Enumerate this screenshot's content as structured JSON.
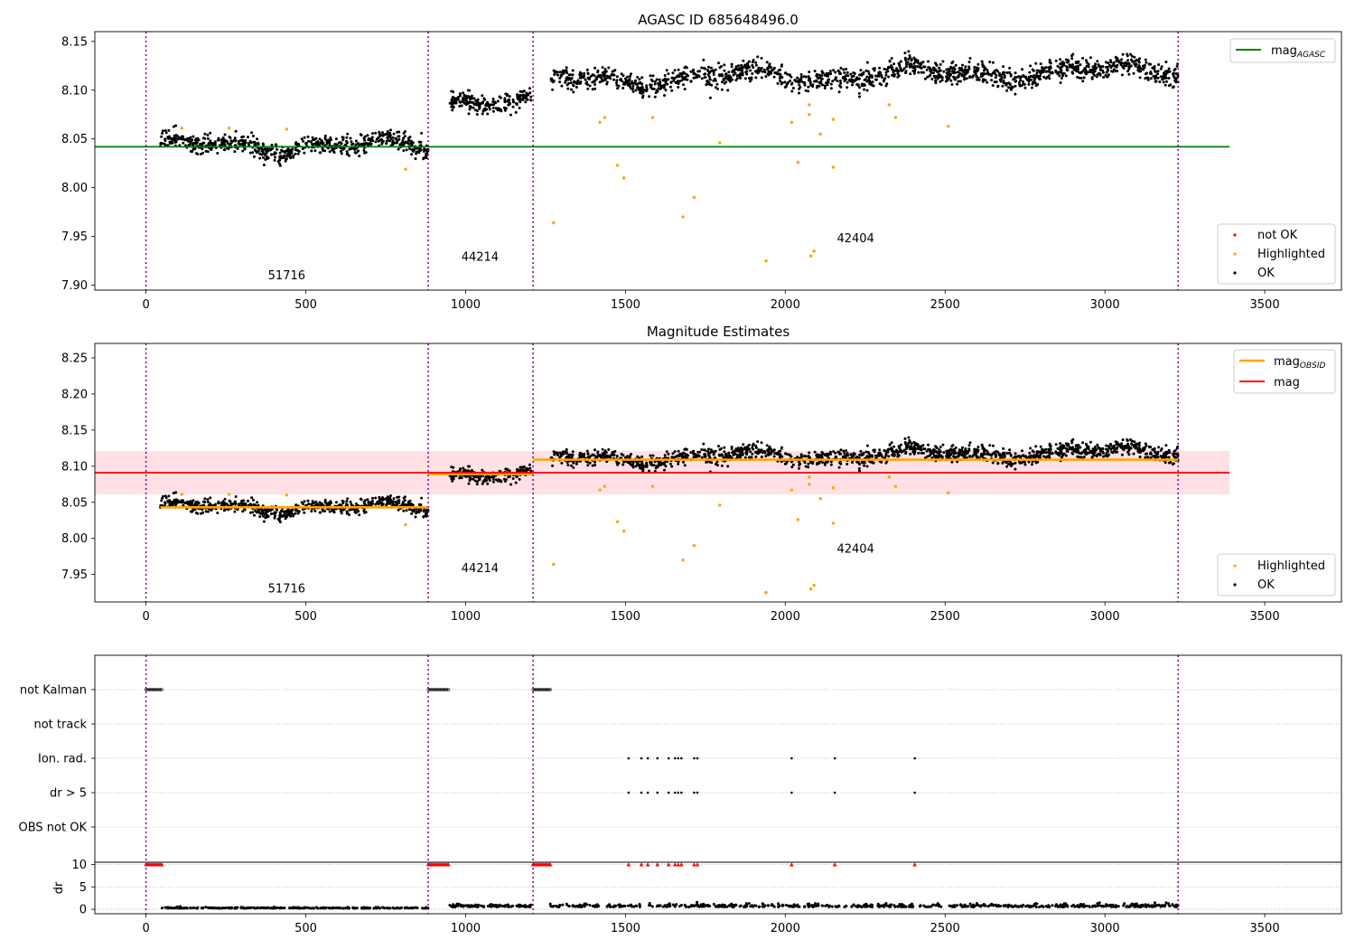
{
  "figure": {
    "background": "#ffffff"
  },
  "chart_data": [
    {
      "type": "scatter",
      "title": "AGASC ID 685648496.0",
      "xlim": [
        -160,
        3740
      ],
      "ylim": [
        7.895,
        8.16
      ],
      "xticks": [
        0,
        500,
        1000,
        1500,
        2000,
        2500,
        3000,
        3500
      ],
      "yticks": [
        7.9,
        7.95,
        8.0,
        8.05,
        8.1,
        8.15
      ],
      "ytick_labels": [
        "7.90",
        "7.95",
        "8.00",
        "8.05",
        "8.10",
        "8.15"
      ],
      "obsid_boundaries": [
        0,
        883,
        1211,
        3229
      ],
      "obsid_labels": [
        {
          "text": "51716",
          "x": 440,
          "y": 7.906
        },
        {
          "text": "44214",
          "x": 1045,
          "y": 7.925
        },
        {
          "text": "42404",
          "x": 2220,
          "y": 7.944
        }
      ],
      "reference_lines": [
        {
          "name": "mag_AGASC",
          "y": 8.042,
          "x": [
            -160,
            3390
          ],
          "color": "#008000",
          "width": 1.8
        }
      ],
      "ok_segments": [
        {
          "x": [
            45,
            883
          ],
          "mean": 8.043,
          "noise": 0.0045,
          "count": 640,
          "dy": [
            0,
            0
          ]
        },
        {
          "x": [
            950,
            1205
          ],
          "mean": 8.09,
          "noise": 0.0045,
          "count": 200,
          "dy": [
            0,
            0
          ]
        },
        {
          "x": [
            1265,
            3229
          ],
          "mean": 8.11,
          "noise": 0.0055,
          "count": 1500,
          "dy": [
            0,
            0.018
          ]
        }
      ],
      "highlighted_points": [
        [
          112,
          8.061
        ],
        [
          260,
          8.061
        ],
        [
          440,
          8.06
        ],
        [
          812,
          8.019
        ],
        [
          1420,
          8.067
        ],
        [
          1435,
          8.072
        ],
        [
          1475,
          8.023
        ],
        [
          1495,
          8.01
        ],
        [
          1585,
          8.072
        ],
        [
          1680,
          7.97
        ],
        [
          1715,
          7.99
        ],
        [
          1795,
          8.046
        ],
        [
          1275,
          7.964
        ],
        [
          1940,
          7.925
        ],
        [
          2020,
          8.067
        ],
        [
          2040,
          8.026
        ],
        [
          2075,
          8.085
        ],
        [
          2075,
          8.075
        ],
        [
          2080,
          7.93
        ],
        [
          2090,
          7.935
        ],
        [
          2110,
          8.055
        ],
        [
          2150,
          8.07
        ],
        [
          2150,
          8.021
        ],
        [
          2325,
          8.085
        ],
        [
          2345,
          8.072
        ],
        [
          2510,
          8.063
        ]
      ],
      "legends": [
        {
          "position": "top-right",
          "entries": [
            {
              "label": "mag",
              "sub": "AGASC",
              "kind": "line",
              "color": "#008000"
            }
          ]
        },
        {
          "position": "bottom-right",
          "entries": [
            {
              "label": "not OK",
              "kind": "dot",
              "color": "#ff0000"
            },
            {
              "label": "Highlighted",
              "kind": "dot",
              "color": "#ffa500"
            },
            {
              "label": "OK",
              "kind": "dot",
              "color": "#000000"
            }
          ]
        }
      ]
    },
    {
      "type": "scatter",
      "title": "Magnitude Estimates",
      "xlim": [
        -160,
        3740
      ],
      "ylim": [
        7.912,
        8.27
      ],
      "xticks": [
        0,
        500,
        1000,
        1500,
        2000,
        2500,
        3000,
        3500
      ],
      "yticks": [
        7.95,
        8.0,
        8.05,
        8.1,
        8.15,
        8.2,
        8.25
      ],
      "ytick_labels": [
        "7.95",
        "8.00",
        "8.05",
        "8.10",
        "8.15",
        "8.20",
        "8.25"
      ],
      "obsid_boundaries": [
        0,
        883,
        1211,
        3229
      ],
      "obsid_labels": [
        {
          "text": "51716",
          "x": 440,
          "y": 7.925
        },
        {
          "text": "44214",
          "x": 1045,
          "y": 7.953
        },
        {
          "text": "42404",
          "x": 2220,
          "y": 7.98
        }
      ],
      "band": {
        "y": [
          8.061,
          8.121
        ],
        "x": [
          -160,
          3390
        ],
        "color": "#ffe0e4"
      },
      "reference_lines": [
        {
          "name": "mag",
          "y": 8.091,
          "x": [
            -160,
            3390
          ],
          "color": "#ff0000",
          "width": 1.8
        }
      ],
      "obsid_mag_segments": [
        {
          "x": [
            45,
            883
          ],
          "y": 8.043
        },
        {
          "x": [
            883,
            1211
          ],
          "y": 8.089
        },
        {
          "x": [
            1211,
            3229
          ],
          "y": 8.109
        }
      ],
      "ok_segments": [
        {
          "x": [
            45,
            883
          ],
          "mean": 8.043,
          "noise": 0.0045,
          "count": 640,
          "dy": [
            0,
            0
          ]
        },
        {
          "x": [
            950,
            1205
          ],
          "mean": 8.09,
          "noise": 0.0045,
          "count": 200,
          "dy": [
            0,
            0
          ]
        },
        {
          "x": [
            1265,
            3229
          ],
          "mean": 8.11,
          "noise": 0.0055,
          "count": 1500,
          "dy": [
            0,
            0.018
          ]
        }
      ],
      "highlighted_points": [
        [
          112,
          8.061
        ],
        [
          260,
          8.061
        ],
        [
          440,
          8.06
        ],
        [
          812,
          8.019
        ],
        [
          1420,
          8.067
        ],
        [
          1435,
          8.072
        ],
        [
          1475,
          8.023
        ],
        [
          1495,
          8.01
        ],
        [
          1585,
          8.072
        ],
        [
          1680,
          7.97
        ],
        [
          1715,
          7.99
        ],
        [
          1795,
          8.046
        ],
        [
          1275,
          7.964
        ],
        [
          1940,
          7.925
        ],
        [
          2020,
          8.067
        ],
        [
          2040,
          8.026
        ],
        [
          2075,
          8.085
        ],
        [
          2075,
          8.075
        ],
        [
          2080,
          7.93
        ],
        [
          2090,
          7.935
        ],
        [
          2110,
          8.055
        ],
        [
          2150,
          8.07
        ],
        [
          2150,
          8.021
        ],
        [
          2325,
          8.085
        ],
        [
          2345,
          8.072
        ],
        [
          2510,
          8.063
        ]
      ],
      "legends": [
        {
          "position": "top-right",
          "entries": [
            {
              "label": "mag",
              "sub": "OBSID",
              "kind": "line",
              "color": "#ffa500"
            },
            {
              "label": "mag",
              "kind": "line",
              "color": "#ff0000"
            }
          ]
        },
        {
          "position": "bottom-right",
          "entries": [
            {
              "label": "Highlighted",
              "kind": "dot",
              "color": "#ffa500"
            },
            {
              "label": "OK",
              "kind": "dot",
              "color": "#000000"
            }
          ]
        }
      ]
    },
    {
      "type": "scatter",
      "title": "",
      "xlim": [
        -160,
        3740
      ],
      "flag_rows": [
        "not Kalman",
        "not track",
        "Ion. rad.",
        "dr > 5",
        "OBS not OK"
      ],
      "flag_points": {
        "not Kalman": [
          [
            0,
            50
          ],
          [
            883,
            950
          ],
          [
            1211,
            1265
          ]
        ],
        "not track": [],
        "Ion. rad.": [
          1510,
          1550,
          1570,
          1600,
          1635,
          1655,
          1665,
          1675,
          1715,
          1725,
          2020,
          2155,
          2405
        ],
        "dr > 5": [
          1510,
          1550,
          1570,
          1600,
          1635,
          1655,
          1665,
          1675,
          1715,
          1725,
          2020,
          2155,
          2405
        ],
        "OBS not OK": []
      },
      "dr_panel": {
        "ylabel": "dr",
        "ylim": [
          -1,
          10.5
        ],
        "yticks": [
          0,
          5,
          10
        ],
        "ytick_labels": [
          "0",
          "5",
          "10"
        ],
        "clipped_value": 10,
        "clipped_color": "#ff0000",
        "clipped_x_ranges": [
          [
            0,
            50
          ],
          [
            883,
            950
          ],
          [
            1211,
            1265
          ]
        ],
        "clipped_x_points": [
          1510,
          1550,
          1570,
          1600,
          1635,
          1655,
          1665,
          1675,
          1715,
          1725,
          2020,
          2155,
          2405
        ],
        "values_segments": [
          {
            "x": [
              50,
              883
            ],
            "mean": 0.2,
            "noise": 0.12,
            "count": 260
          },
          {
            "x": [
              950,
              1205
            ],
            "mean": 0.5,
            "noise": 0.3,
            "count": 110
          },
          {
            "x": [
              1265,
              3229
            ],
            "mean": 0.5,
            "noise": 0.35,
            "count": 620
          }
        ]
      },
      "xticks": [
        0,
        500,
        1000,
        1500,
        2000,
        2500,
        3000,
        3500
      ],
      "obsid_boundaries": [
        0,
        883,
        1211,
        3229
      ]
    }
  ],
  "colors": {
    "ok": "#000000",
    "highlighted": "#ffa500",
    "not_ok": "#ff0000",
    "boundary": "#800080"
  }
}
